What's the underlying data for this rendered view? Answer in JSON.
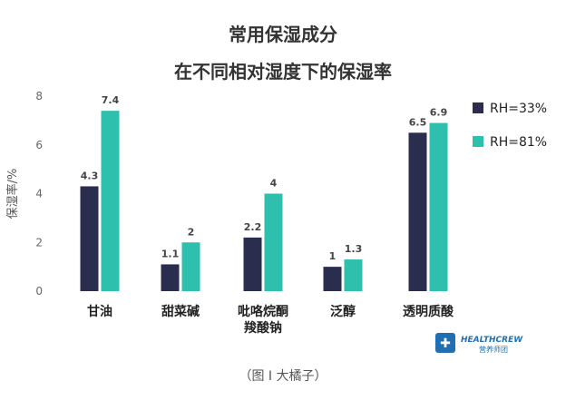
{
  "chart_data": {
    "type": "bar",
    "title": "常用保湿成分",
    "subtitle": "在不同相对湿度下的保湿率",
    "ylabel": "保湿率/%",
    "xlabel": "",
    "ylim": [
      0,
      8
    ],
    "yticks": [
      0,
      2,
      4,
      6,
      8
    ],
    "grid": false,
    "legend_position": "right",
    "categories": [
      [
        "甘油"
      ],
      [
        "甜菜碱"
      ],
      [
        "吡咯烷酮",
        "羧酸钠"
      ],
      [
        "泛醇"
      ],
      [
        "透明质酸"
      ]
    ],
    "series": [
      {
        "name": "RH=33%",
        "color": "#2b2d4f",
        "values": [
          4.3,
          1.1,
          2.2,
          1,
          6.5
        ],
        "labels": [
          "4.3",
          "1.1",
          "2.2",
          "1",
          "6.5"
        ]
      },
      {
        "name": "RH=81%",
        "color": "#2fbfad",
        "values": [
          7.4,
          2,
          4,
          1.3,
          6.9
        ],
        "labels": [
          "7.4",
          "2",
          "4",
          "1.3",
          "6.9"
        ]
      }
    ]
  },
  "caption": "（图 I 大橘子）",
  "logo": {
    "name": "HEALTHCREW",
    "subtext": "营养师团",
    "color": "#1f6fb2"
  }
}
